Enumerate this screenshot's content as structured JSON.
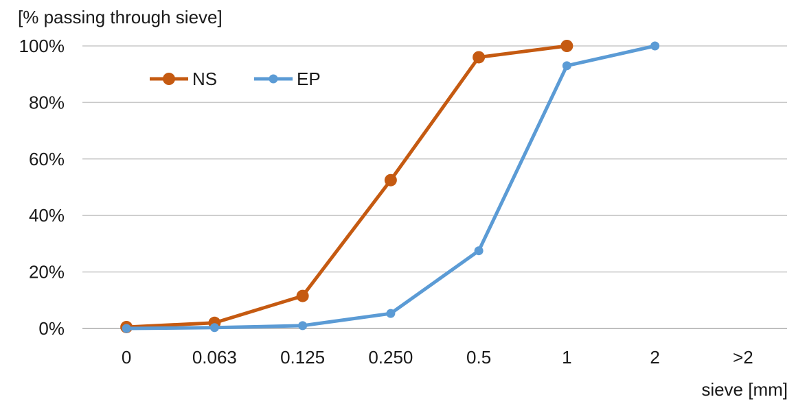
{
  "chart_data": {
    "type": "line",
    "ylabel": "[% passing through sieve]",
    "xlabel": "sieve [mm]",
    "categories": [
      "0",
      "0.063",
      "0.125",
      "0.250",
      "0.5",
      "1",
      "2",
      ">2"
    ],
    "yticks": [
      "0%",
      "20%",
      "40%",
      "60%",
      "80%",
      "100%"
    ],
    "ylim": [
      0,
      100
    ],
    "grid": true,
    "legend_position": "top-left",
    "series": [
      {
        "name": "NS",
        "color": "#C55A11",
        "marker": "circle-large",
        "values": [
          0.5,
          2,
          11.5,
          52.5,
          96,
          100,
          null,
          null
        ]
      },
      {
        "name": "EP",
        "color": "#5B9BD5",
        "marker": "circle-small",
        "values": [
          0,
          0.3,
          1,
          5.3,
          27.5,
          93,
          100,
          null
        ]
      }
    ]
  }
}
